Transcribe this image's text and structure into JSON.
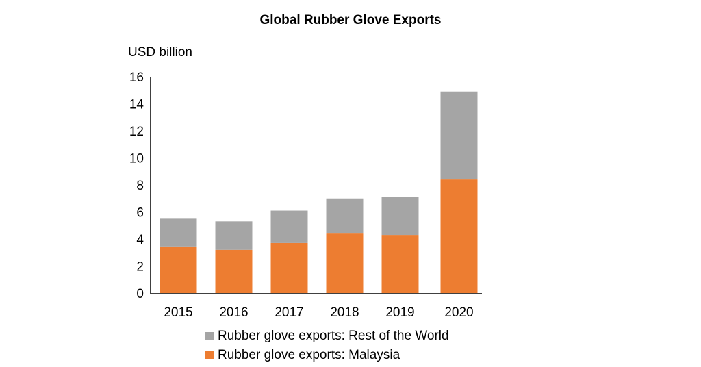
{
  "chart_data": {
    "type": "bar",
    "stacked": true,
    "title": "Global Rubber Glove Exports",
    "ylabel": "USD billion",
    "xlabel": "",
    "ylim": [
      0,
      16
    ],
    "yticks": [
      0,
      2,
      4,
      6,
      8,
      10,
      12,
      14,
      16
    ],
    "grid": false,
    "legend_position": "bottom",
    "categories": [
      "2015",
      "2016",
      "2017",
      "2018",
      "2019",
      "2020"
    ],
    "series": [
      {
        "name": "Rubber glove exports: Malaysia",
        "color": "#ED7D31",
        "values": [
          3.4,
          3.2,
          3.7,
          4.4,
          4.3,
          8.4
        ]
      },
      {
        "name": "Rubber glove exports: Rest of the World",
        "color": "#A5A5A5",
        "values": [
          2.1,
          2.1,
          2.4,
          2.6,
          2.8,
          6.5
        ]
      }
    ]
  }
}
